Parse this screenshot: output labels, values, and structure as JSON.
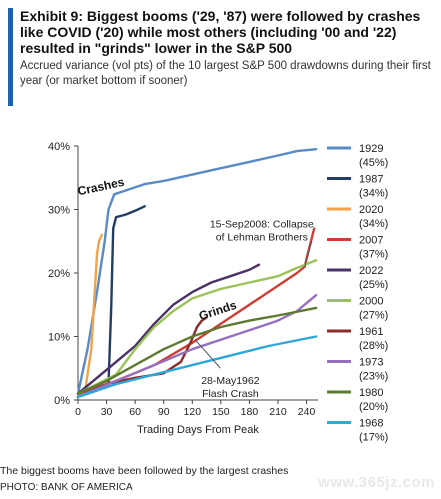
{
  "header": {
    "title": "Exhibit 9: Biggest booms ('29, '87) were followed by crashes like COVID ('20) while most others (including '00 and '22) resulted in \"grinds\" lower in the S&P 500",
    "subtitle": "Accrued variance (vol pts) of the 10 largest S&P 500 drawdowns during their first year (or market bottom if sooner)"
  },
  "caption": "The biggest booms have been followed by the largest crashes",
  "photo_credit": "PHOTO: BANK OF AMERICA",
  "watermark": "www.365jz.com",
  "colors": {
    "accent": "#1f5fb0"
  },
  "chart_data": {
    "type": "line",
    "xlabel": "Trading Days From Peak",
    "ylabel": "",
    "xlim": [
      0,
      252
    ],
    "ylim": [
      0,
      40
    ],
    "x_ticks": [
      0,
      30,
      60,
      90,
      120,
      150,
      180,
      210,
      240
    ],
    "y_ticks": [
      "0%",
      "10%",
      "20%",
      "30%",
      "40%"
    ],
    "grid": false,
    "legend_placement": "right",
    "annotations": [
      {
        "id": "crashes",
        "text": "Crashes",
        "x": 25,
        "y": 33,
        "rotate": -12,
        "bold": true
      },
      {
        "id": "grinds",
        "text": "Grinds",
        "x": 148,
        "y": 13.5,
        "rotate": -18,
        "bold": true
      },
      {
        "id": "lehman",
        "text": "15-Sep2008: Collapse\nof Lehman Brothers",
        "x": 193,
        "y": 27.2,
        "arrow_to": [
          238,
          21
        ],
        "rotate": 0,
        "bold": false
      },
      {
        "id": "flash",
        "text": "28-May1962\nFlash Crash",
        "x": 160,
        "y": 2.5,
        "arrow_to": [
          123,
          9.5
        ],
        "rotate": 0,
        "bold": false
      }
    ],
    "series": [
      {
        "name": "1929",
        "pct": "(45%)",
        "color": "#5a8bc7",
        "points": [
          [
            0,
            1
          ],
          [
            10,
            8
          ],
          [
            20,
            17
          ],
          [
            28,
            25
          ],
          [
            32,
            30
          ],
          [
            38,
            32.4
          ],
          [
            50,
            33
          ],
          [
            70,
            34
          ],
          [
            90,
            34.5
          ],
          [
            120,
            35.5
          ],
          [
            150,
            36.5
          ],
          [
            180,
            37.5
          ],
          [
            210,
            38.5
          ],
          [
            230,
            39.2
          ],
          [
            250,
            39.5
          ]
        ]
      },
      {
        "name": "1987",
        "pct": "(34%)",
        "color": "#243c63",
        "points": [
          [
            0,
            0.5
          ],
          [
            20,
            1.5
          ],
          [
            32,
            2.5
          ],
          [
            35,
            15
          ],
          [
            37,
            27
          ],
          [
            40,
            28.8
          ],
          [
            50,
            29.2
          ],
          [
            60,
            29.8
          ],
          [
            70,
            30.5
          ]
        ]
      },
      {
        "name": "2020",
        "pct": "(34%)",
        "color": "#f2a24a",
        "points": [
          [
            0,
            0.5
          ],
          [
            8,
            2
          ],
          [
            14,
            8
          ],
          [
            18,
            18
          ],
          [
            20,
            23
          ],
          [
            22,
            25
          ],
          [
            25,
            26
          ]
        ]
      },
      {
        "name": "2007",
        "pct": "(37%)",
        "color": "#cc3f36",
        "points": [
          [
            0,
            1
          ],
          [
            40,
            3
          ],
          [
            80,
            5.5
          ],
          [
            120,
            9
          ],
          [
            160,
            13
          ],
          [
            195,
            16.5
          ],
          [
            215,
            18.5
          ],
          [
            230,
            20
          ],
          [
            238,
            21
          ],
          [
            242,
            23.5
          ],
          [
            248,
            27
          ]
        ]
      },
      {
        "name": "2022",
        "pct": "(25%)",
        "color": "#4b3166",
        "points": [
          [
            0,
            1
          ],
          [
            20,
            3.5
          ],
          [
            40,
            6
          ],
          [
            60,
            8.5
          ],
          [
            80,
            12
          ],
          [
            100,
            15
          ],
          [
            120,
            17
          ],
          [
            140,
            18.5
          ],
          [
            160,
            19.5
          ],
          [
            180,
            20.5
          ],
          [
            190,
            21.3
          ]
        ]
      },
      {
        "name": "2000",
        "pct": "(27%)",
        "color": "#9bc35a",
        "points": [
          [
            0,
            1
          ],
          [
            20,
            2.5
          ],
          [
            40,
            4
          ],
          [
            60,
            8
          ],
          [
            80,
            11.5
          ],
          [
            100,
            14
          ],
          [
            120,
            16
          ],
          [
            150,
            17.5
          ],
          [
            180,
            18.5
          ],
          [
            210,
            19.5
          ],
          [
            230,
            20.8
          ],
          [
            250,
            22
          ]
        ]
      },
      {
        "name": "1961",
        "pct": "(28%)",
        "color": "#8c2c2a",
        "points": [
          [
            0,
            0.5
          ],
          [
            30,
            2.5
          ],
          [
            60,
            3.5
          ],
          [
            90,
            4.2
          ],
          [
            108,
            6
          ],
          [
            118,
            9
          ],
          [
            125,
            11.5
          ],
          [
            130,
            12.5
          ],
          [
            135,
            13
          ]
        ]
      },
      {
        "name": "1973",
        "pct": "(23%)",
        "color": "#9670bf",
        "points": [
          [
            0,
            0.5
          ],
          [
            40,
            3
          ],
          [
            80,
            5.5
          ],
          [
            120,
            8
          ],
          [
            160,
            10
          ],
          [
            190,
            11.5
          ],
          [
            210,
            12.5
          ],
          [
            230,
            14
          ],
          [
            250,
            16.5
          ]
        ]
      },
      {
        "name": "1980",
        "pct": "(20%)",
        "color": "#5e7a30",
        "points": [
          [
            0,
            1
          ],
          [
            30,
            3
          ],
          [
            60,
            5.5
          ],
          [
            90,
            8
          ],
          [
            120,
            10
          ],
          [
            150,
            11.5
          ],
          [
            180,
            12.5
          ],
          [
            210,
            13.3
          ],
          [
            250,
            14.5
          ]
        ]
      },
      {
        "name": "1968",
        "pct": "(17%)",
        "color": "#2fa7d8",
        "points": [
          [
            0,
            0.5
          ],
          [
            40,
            2.5
          ],
          [
            80,
            4
          ],
          [
            120,
            5.5
          ],
          [
            160,
            7
          ],
          [
            200,
            8.5
          ],
          [
            250,
            10
          ]
        ]
      }
    ]
  }
}
